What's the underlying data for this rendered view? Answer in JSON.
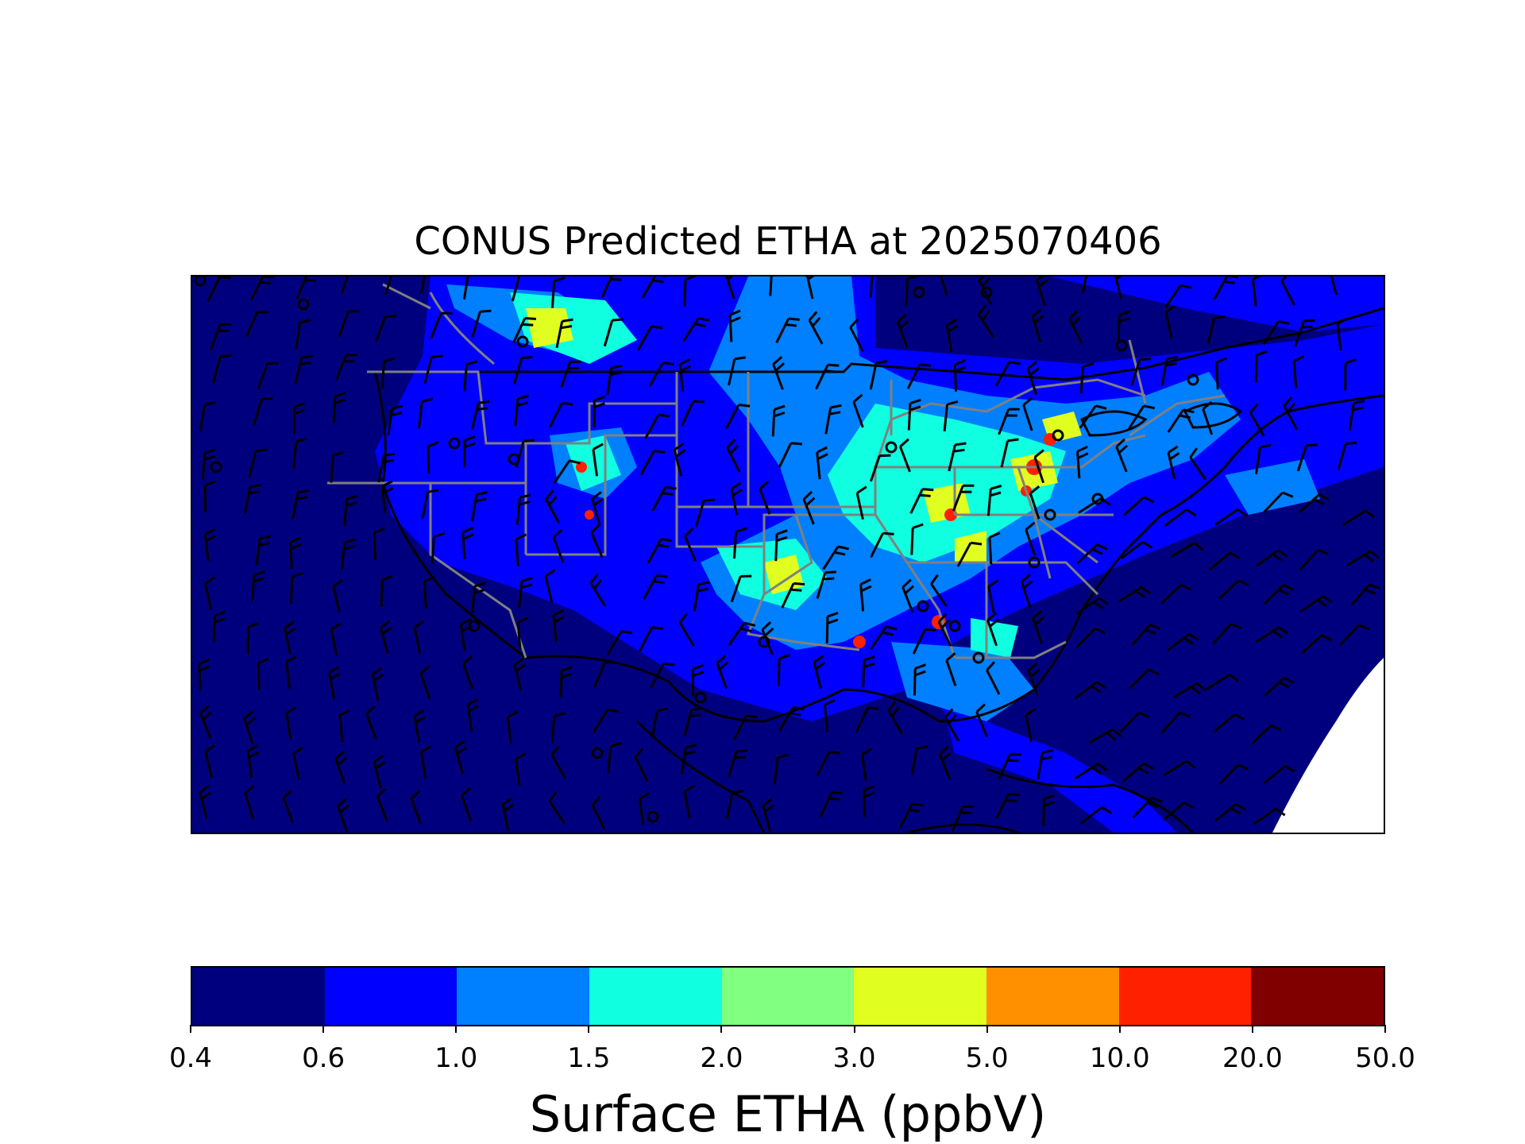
{
  "title": "CONUS Predicted ETHA at 2025070406",
  "colorbar": {
    "label": "Surface ETHA (ppbV)",
    "ticks": [
      "0.4",
      "0.6",
      "1.0",
      "1.5",
      "2.0",
      "3.0",
      "5.0",
      "10.0",
      "20.0",
      "50.0"
    ],
    "colors": [
      "#00007f",
      "#0000ff",
      "#0080ff",
      "#10ffe0",
      "#80ff80",
      "#e0ff20",
      "#ff9000",
      "#ff2000",
      "#800000"
    ]
  },
  "map": {
    "background_color": "#00007f",
    "state_border_color": "#808080",
    "coast_color": "#000000",
    "missing_region_color": "#ffffff"
  }
}
